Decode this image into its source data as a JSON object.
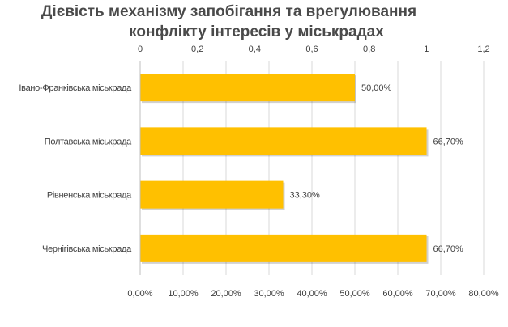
{
  "chart_data": {
    "type": "bar",
    "orientation": "horizontal",
    "title_lines": [
      "Дієвість механізму запобігання  та врегулювання",
      "конфлікту  інтересів у міськрадах"
    ],
    "categories": [
      "Івано-Франківська міськрада",
      "Полтавська міськрада",
      "Рівненська міськрада",
      "Чернігівська міськрада"
    ],
    "values": [
      50.0,
      66.7,
      33.3,
      66.7
    ],
    "data_labels": [
      "50,00%",
      "66,70%",
      "33,30%",
      "66,70%"
    ],
    "bottom_axis": {
      "ticks": [
        0,
        10,
        20,
        30,
        40,
        50,
        60,
        70,
        80
      ],
      "tick_labels": [
        "0,00%",
        "10,00%",
        "20,00%",
        "30,00%",
        "40,00%",
        "50,00%",
        "60,00%",
        "70,00%",
        "80,00%"
      ],
      "range": [
        0,
        80
      ]
    },
    "top_axis": {
      "ticks": [
        0,
        0.2,
        0.4,
        0.6,
        0.8,
        1.0,
        1.2
      ],
      "tick_labels": [
        "0",
        "0,2",
        "0,4",
        "0,6",
        "0,8",
        "1",
        "1,2"
      ],
      "range": [
        0,
        1.2
      ]
    },
    "bar_color": "#FFC000",
    "grid": "vertical",
    "grid_color": "#D9D9D9",
    "title_color": "#4A4A4A",
    "legend": "none"
  }
}
